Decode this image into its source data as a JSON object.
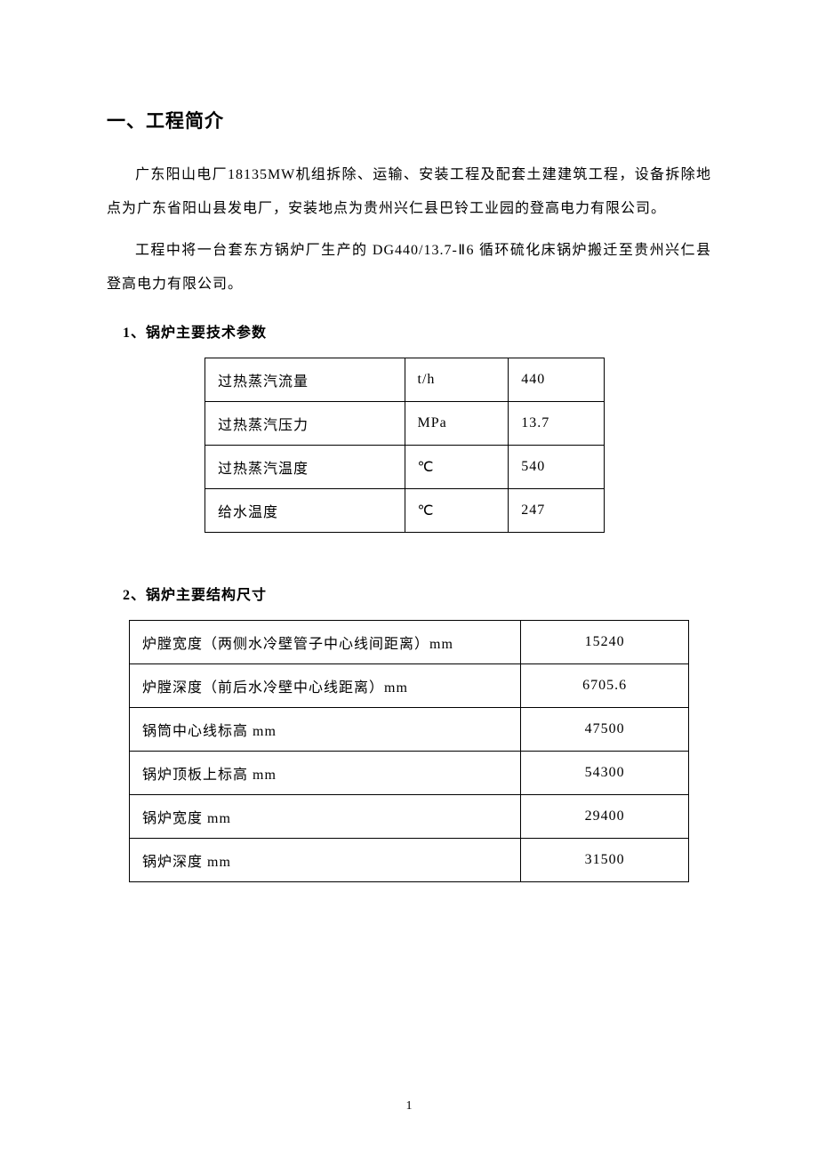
{
  "heading1": "一、工程简介",
  "para1": "广东阳山电厂18135MW机组拆除、运输、安装工程及配套土建建筑工程，设备拆除地点为广东省阳山县发电厂，安装地点为贵州兴仁县巴铃工业园的登高电力有限公司。",
  "para2": "工程中将一台套东方锅炉厂生产的 DG440/13.7-Ⅱ6 循环硫化床锅炉搬迁至贵州兴仁县登高电力有限公司。",
  "heading2a": "1、锅炉主要技术参数",
  "table1": {
    "rows": [
      {
        "label": "过热蒸汽流量",
        "unit": "t/h",
        "value": "440"
      },
      {
        "label": "过热蒸汽压力",
        "unit": "MPa",
        "value": "13.7"
      },
      {
        "label": "过热蒸汽温度",
        "unit": "℃",
        "value": "540"
      },
      {
        "label": "给水温度",
        "unit": "℃",
        "value": "247"
      }
    ]
  },
  "heading2b": "2、锅炉主要结构尺寸",
  "table2": {
    "rows": [
      {
        "label": "炉膛宽度（两侧水冷壁管子中心线间距离）mm",
        "value": "15240"
      },
      {
        "label": "炉膛深度（前后水冷壁中心线距离）mm",
        "value": "6705.6"
      },
      {
        "label": "锅筒中心线标高 mm",
        "value": "47500"
      },
      {
        "label": "锅炉顶板上标高 mm",
        "value": "54300"
      },
      {
        "label": "锅炉宽度 mm",
        "value": "29400"
      },
      {
        "label": "锅炉深度 mm",
        "value": "31500"
      }
    ]
  },
  "pageNumber": "1"
}
